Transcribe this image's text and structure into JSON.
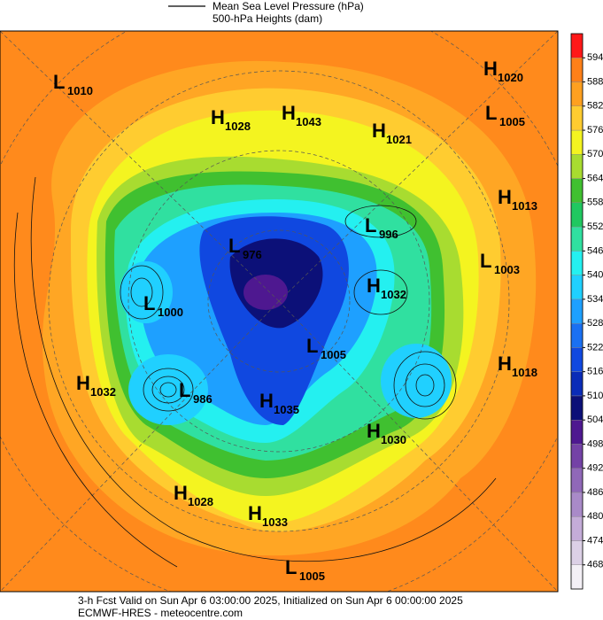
{
  "legend": {
    "items": [
      "Mean Sea Level Pressure (hPa)",
      "500-hPa Heights (dam)"
    ]
  },
  "colorbar": {
    "ticks": [
      468,
      474,
      480,
      486,
      492,
      498,
      504,
      510,
      516,
      522,
      528,
      534,
      540,
      546,
      552,
      558,
      564,
      570,
      576,
      582,
      588,
      594
    ],
    "colors": [
      "#f4f0f6",
      "#dcd0e6",
      "#c4acd8",
      "#a98ac8",
      "#9068b8",
      "#7442a6",
      "#4e1890",
      "#0c1078",
      "#0a2cb8",
      "#1048e0",
      "#1a70f2",
      "#1ea0ff",
      "#20d0ff",
      "#24f0f0",
      "#30e0a0",
      "#20c860",
      "#40c030",
      "#a8dc30",
      "#f4f420",
      "#ffcc30",
      "#ffa020",
      "#ff8018",
      "#ff1818"
    ]
  },
  "centers": [
    {
      "type": "L",
      "pressure": 1010
    },
    {
      "type": "H",
      "pressure": 1028
    },
    {
      "type": "H",
      "pressure": 1043
    },
    {
      "type": "H",
      "pressure": 1021
    },
    {
      "type": "H",
      "pressure": 1020
    },
    {
      "type": "L",
      "pressure": 1005
    },
    {
      "type": "H",
      "pressure": 1013
    },
    {
      "type": "L",
      "pressure": 996
    },
    {
      "type": "L",
      "pressure": 976
    },
    {
      "type": "L",
      "pressure": 1003
    },
    {
      "type": "H",
      "pressure": 1032
    },
    {
      "type": "L",
      "pressure": 1000
    },
    {
      "type": "L",
      "pressure": 1005
    },
    {
      "type": "H",
      "pressure": 1018
    },
    {
      "type": "H",
      "pressure": 1032
    },
    {
      "type": "L",
      "pressure": 986
    },
    {
      "type": "H",
      "pressure": 1035
    },
    {
      "type": "H",
      "pressure": 1030
    },
    {
      "type": "H",
      "pressure": 1028
    },
    {
      "type": "H",
      "pressure": 1033
    },
    {
      "type": "L",
      "pressure": 1005
    }
  ],
  "footer": {
    "line1": "3-h Fcst Valid on Sun Apr  6 03:00:00 2025, Initialized on Sun Apr  6 00:00:00 2025",
    "line2": "ECMWF-HRES  - meteocentre.com"
  }
}
